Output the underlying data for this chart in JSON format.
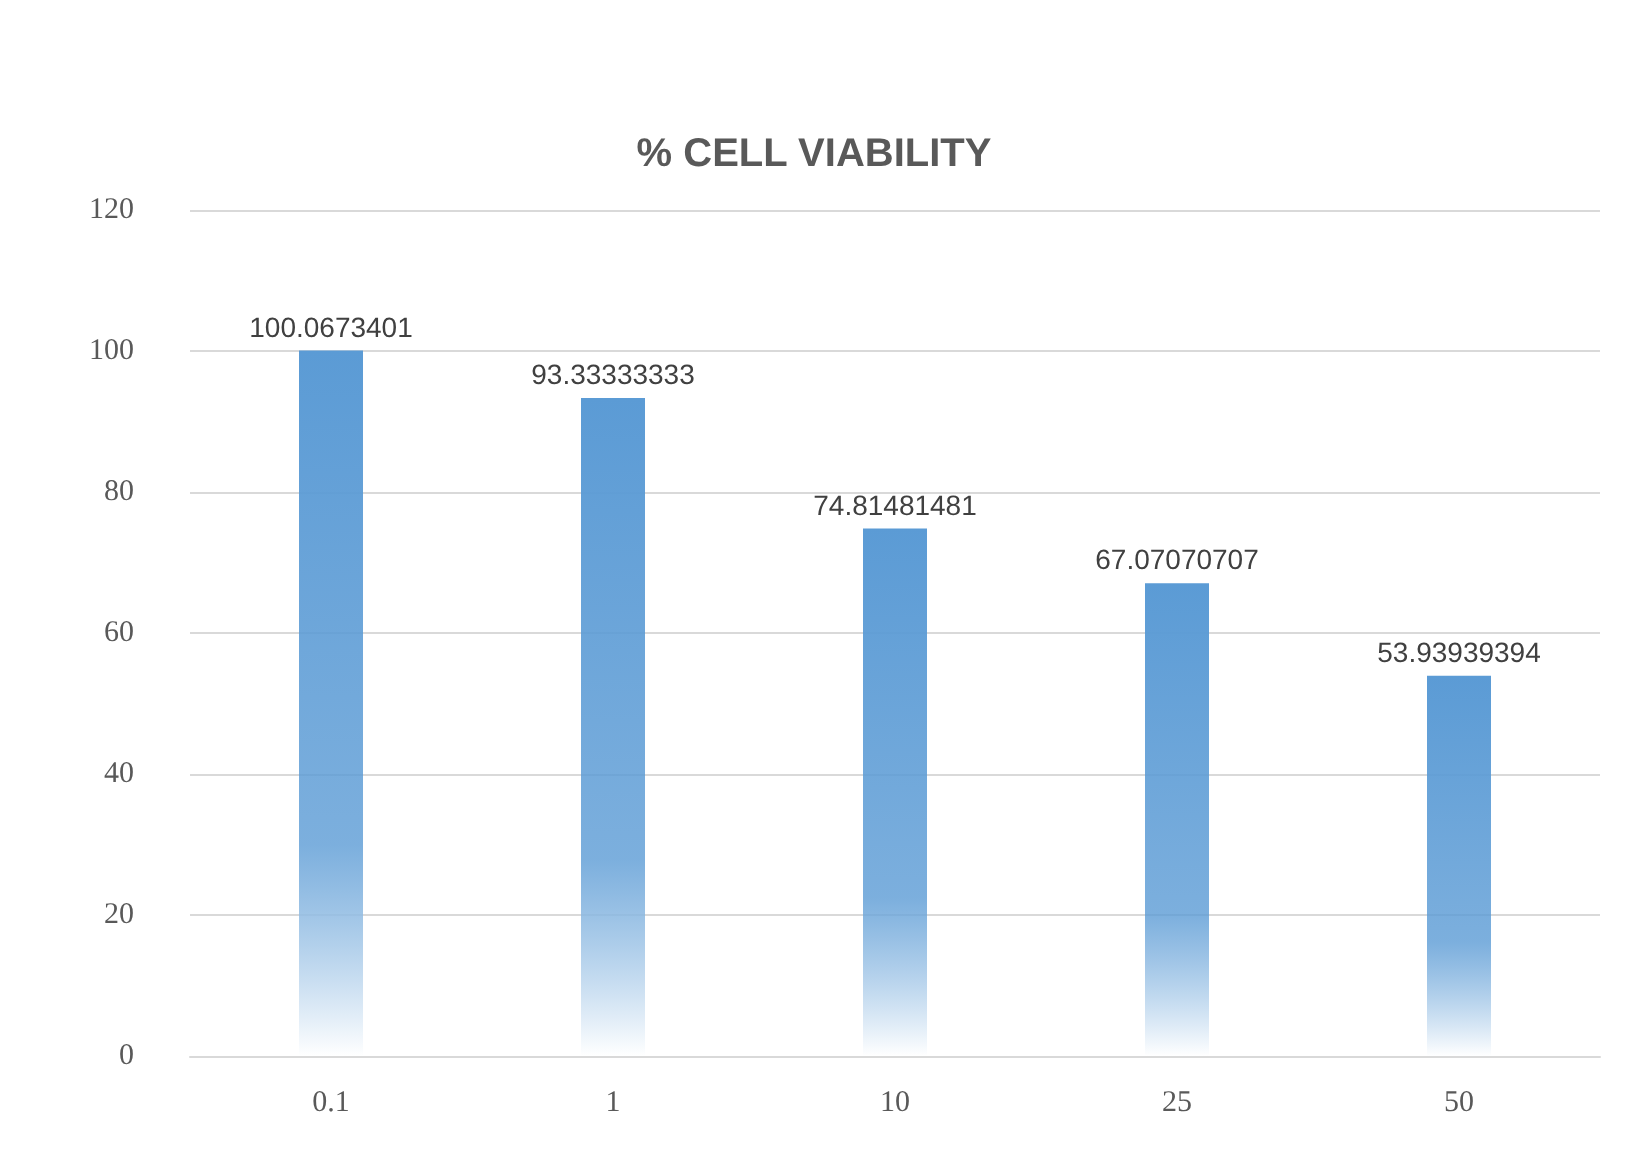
{
  "chart_data": {
    "type": "bar",
    "title": "% CELL VIABILITY",
    "categories": [
      "0.1",
      "1",
      "10",
      "25",
      "50"
    ],
    "values": [
      100.0673401,
      93.33333333,
      74.81481481,
      67.07070707,
      53.93939394
    ],
    "color": "#5b9bd5",
    "ylim": [
      0,
      120
    ],
    "yticks": [
      0,
      20,
      40,
      60,
      80,
      100,
      120
    ],
    "grid": "y",
    "data_labels": true
  }
}
